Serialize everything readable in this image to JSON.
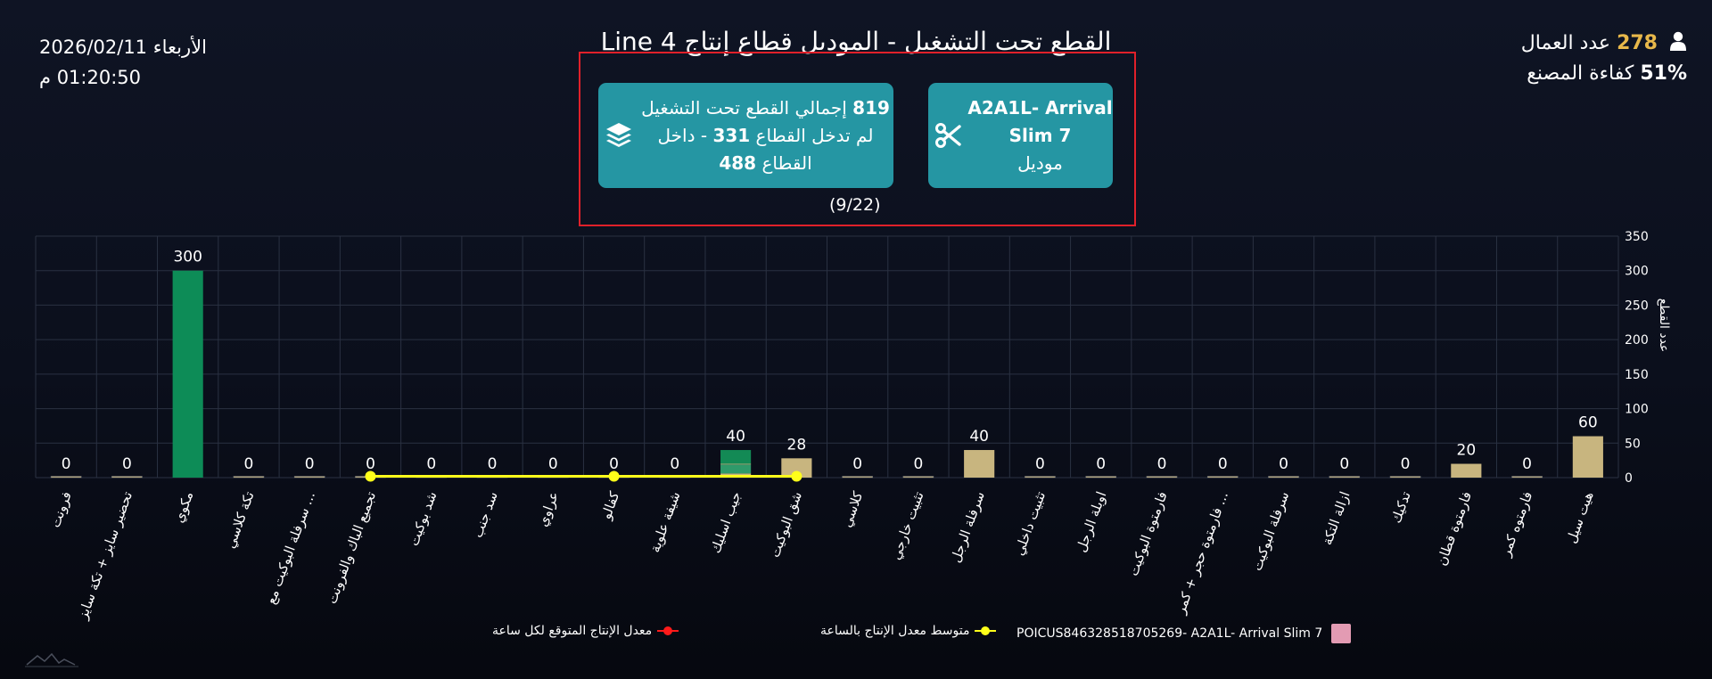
{
  "header": {
    "datetime": {
      "day_date": "الأربعاء 2026/02/11",
      "time": "01:20:50 م"
    },
    "title": "القطع تحت التشغيل - الموديل قطاع إنتاج Line 4",
    "stats": {
      "workers_label": "عدد العمال",
      "workers_value": "278",
      "efficiency_label": "كفاءة المصنع",
      "efficiency_value": "51%"
    }
  },
  "cards": {
    "pieces": {
      "total_value": "819",
      "total_label": "إجمالي القطع تحت التشغيل",
      "not_entered_label": "لم تدخل القطاع",
      "not_entered_value": "331",
      "inside_label": "- داخل القطاع",
      "inside_value": "488",
      "icon": "layers-icon"
    },
    "model": {
      "model_name_line1": "A2A1L- Arrival",
      "model_name_line2": "Slim 7",
      "model_label": "موديل",
      "icon": "scissors-icon"
    },
    "counter": "(9/22)"
  },
  "chart_data": {
    "type": "bar",
    "ylabel": "عدد القطع",
    "ylim": [
      0,
      350
    ],
    "yticks": [
      0,
      50,
      100,
      150,
      200,
      250,
      300,
      350
    ],
    "grid": true,
    "categories": [
      "فرونت",
      "تحضير سايز + تكة سايز",
      "مكوي",
      "تكة كلاسي",
      "سرفلة البوكيت مع ...",
      "تجميع الباك والفرونت",
      "شد بوكيت",
      "سد جنب",
      "عراوي",
      "كفالو",
      "شيفة علوية",
      "جيب اسليك",
      "شق البوكيت",
      "كلاسي",
      "تثبيت خارجي",
      "سرفلة الرجل",
      "تثبيت داخلي",
      "اوبلة الرجل",
      "فارمتوة البوكيت",
      "فارمتوة حجر + كمر ...",
      "سرفلة البوكيت",
      "ازالة التكة",
      "تدكيك",
      "فارمتوة قطان",
      "فارمتوه كمر",
      "هيت سيل"
    ],
    "values": [
      0,
      0,
      300,
      0,
      0,
      0,
      0,
      0,
      0,
      0,
      0,
      40,
      28,
      0,
      0,
      40,
      0,
      0,
      0,
      0,
      0,
      0,
      0,
      20,
      0,
      60
    ],
    "stack_segments": {
      "جيب اسليك": [
        {
          "color": "#c8b57f",
          "value": 6
        },
        {
          "color": "#2f9a6a",
          "value": 13
        },
        {
          "color": "#c8b57f",
          "value": 1
        },
        {
          "color": "#138a55",
          "value": 20
        }
      ]
    },
    "bar_colors": {
      "default": "#c8b57f",
      "مكوي": "#0d8c57"
    },
    "average_line": {
      "name": "متوسط معدل الإنتاج بالساعة",
      "color": "#ffff1a",
      "from_category": "تجميع الباك والفرونت",
      "to_category": "شق البوكيت",
      "points_at": [
        "تجميع الباك والفرونت",
        "كفالو",
        "شق البوكيت"
      ],
      "value": 2
    },
    "legend": [
      {
        "name": "POICUS846328518705269- A2A1L- Arrival Slim 7",
        "color": "#e39bb3",
        "kind": "box"
      },
      {
        "name": "متوسط معدل الإنتاج بالساعة",
        "color": "#ffff1a",
        "kind": "line"
      },
      {
        "name": "معدل الإنتاج المتوقع لكل ساعة",
        "color": "#ff1a1a",
        "kind": "line"
      }
    ],
    "legend_position": "bottom"
  }
}
